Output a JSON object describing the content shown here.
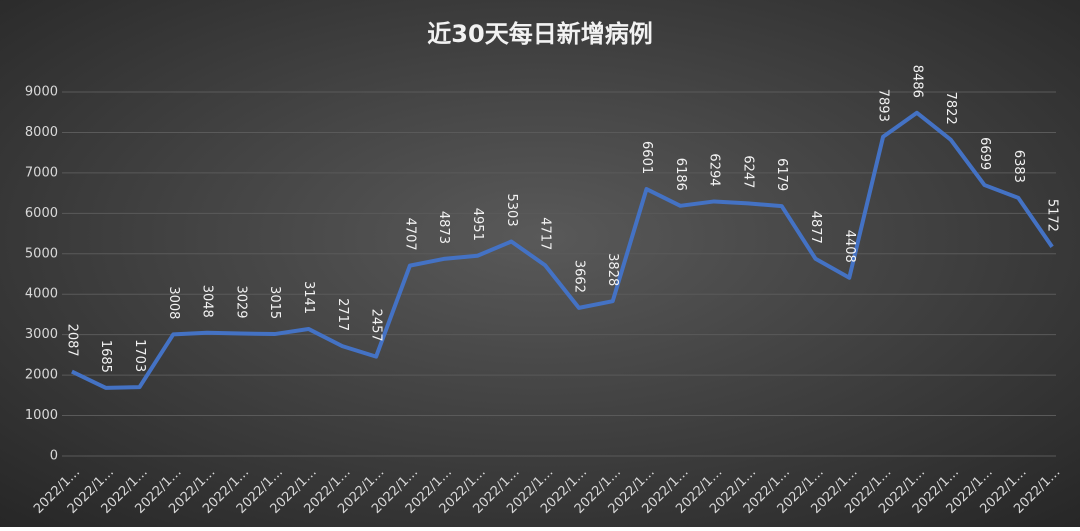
{
  "chart_data": {
    "type": "line",
    "title": "近30天每日新增病例",
    "categories": [
      "2022/1…",
      "2022/1…",
      "2022/1…",
      "2022/1…",
      "2022/1…",
      "2022/1…",
      "2022/1…",
      "2022/1…",
      "2022/1…",
      "2022/1…",
      "2022/1…",
      "2022/1…",
      "2022/1…",
      "2022/1…",
      "2022/1…",
      "2022/1…",
      "2022/1…",
      "2022/1…",
      "2022/1…",
      "2022/1…",
      "2022/1…",
      "2022/1…",
      "2022/1…",
      "2022/1…",
      "2022/1…",
      "2022/1…",
      "2022/1…",
      "2022/1…",
      "2022/1…",
      "2022/1…"
    ],
    "values": [
      2087,
      1685,
      1703,
      3008,
      3048,
      3029,
      3015,
      3141,
      2717,
      2457,
      4707,
      4873,
      4951,
      5303,
      4717,
      3662,
      3828,
      6601,
      6186,
      6294,
      6247,
      6179,
      4877,
      4408,
      7893,
      8486,
      7822,
      6699,
      6383,
      5172
    ],
    "color": "#4472c4",
    "ylim": [
      0,
      9000
    ],
    "yticks": [
      0,
      1000,
      2000,
      3000,
      4000,
      5000,
      6000,
      7000,
      8000,
      9000
    ],
    "grid": true
  }
}
